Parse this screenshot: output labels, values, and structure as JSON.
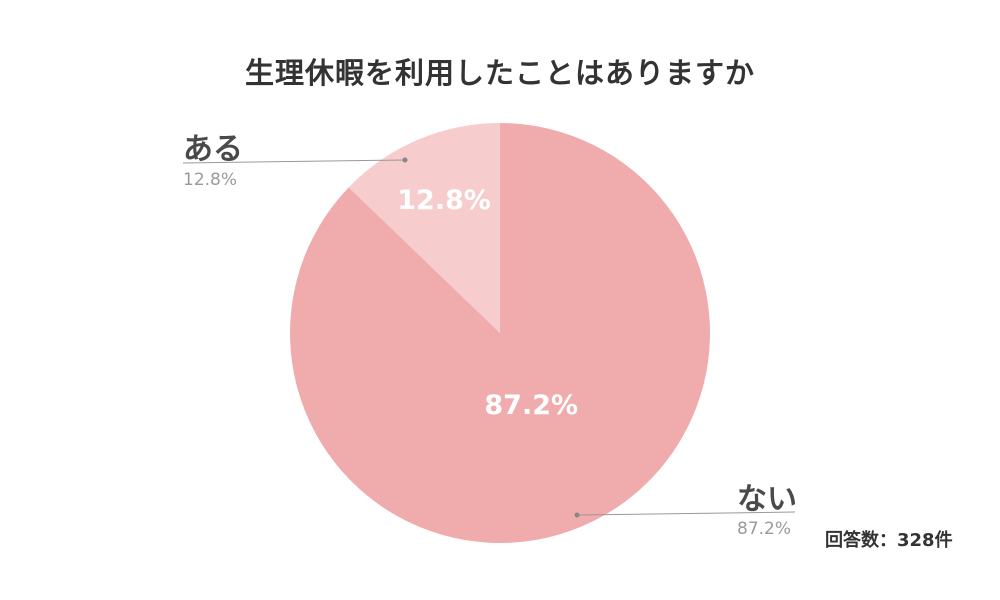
{
  "chart_data": {
    "type": "pie",
    "title": "生理休暇を利用したことはありますか",
    "slices": [
      {
        "label": "ない",
        "value": 87.2,
        "display": "87.2%",
        "color": "#f0acac"
      },
      {
        "label": "ある",
        "value": 12.8,
        "display": "12.8%",
        "color": "#f6cccc"
      }
    ],
    "start": "12 o'clock, clockwise",
    "slice_label_color": "#ffffff",
    "leader_line_color": "#999999",
    "legend": "none (callout labels)",
    "note": "回答数：328件"
  }
}
